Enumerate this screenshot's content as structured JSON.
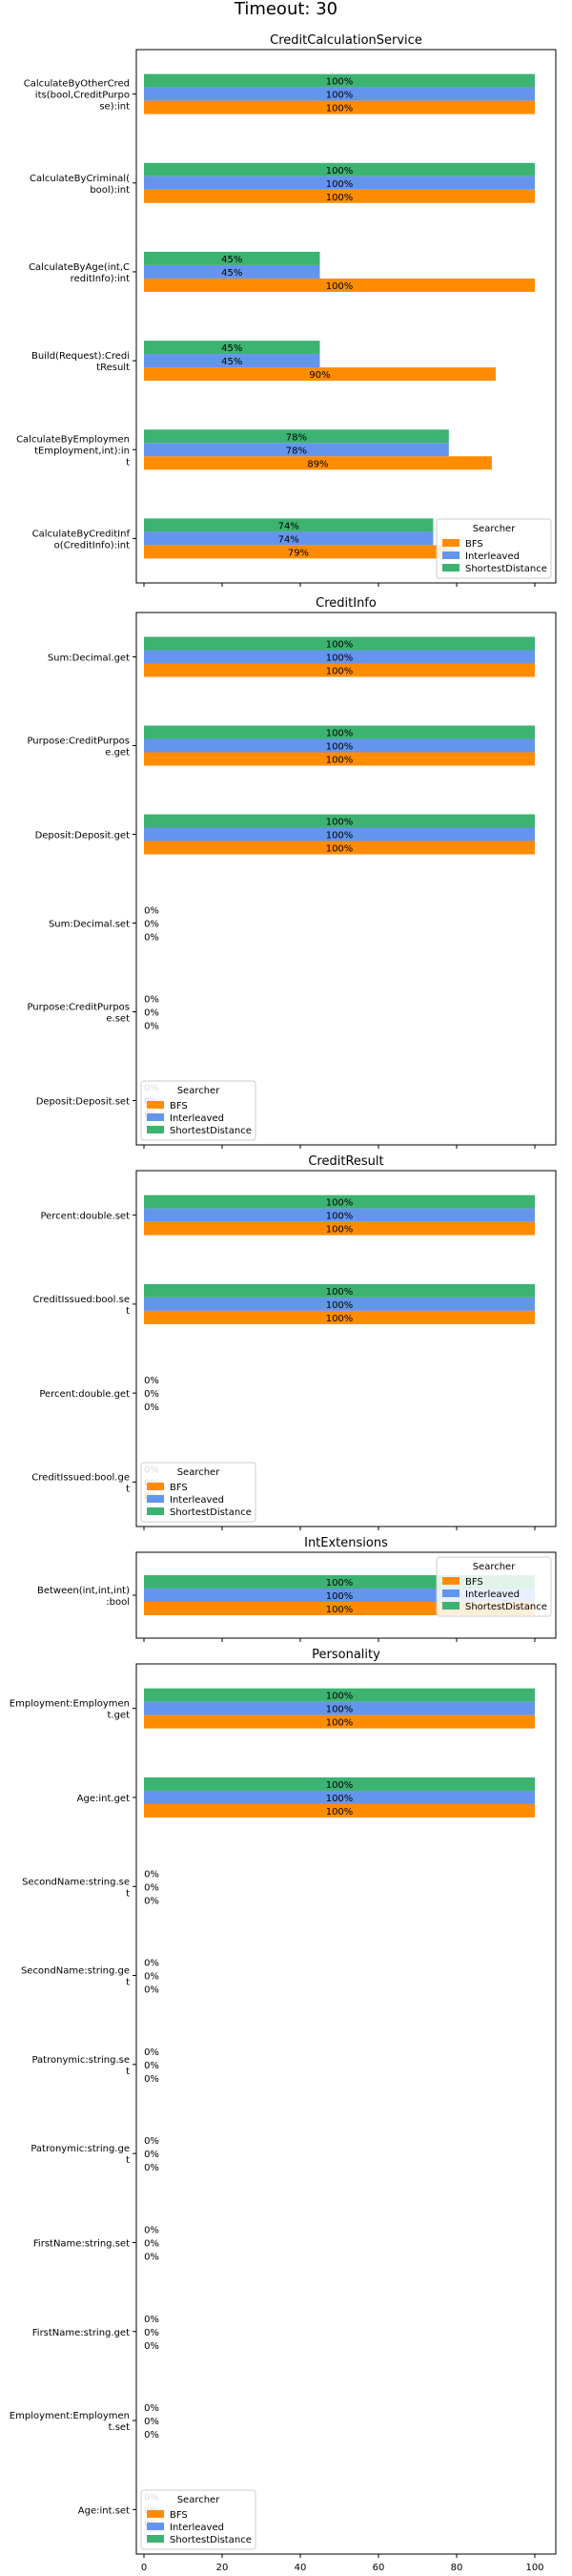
{
  "title": "Timeout: 30",
  "colors": {
    "BFS": "#ff8c00",
    "Interleaved": "#6495ed",
    "ShortestDistance": "#3cb371"
  },
  "chart_data": [
    {
      "type": "bar",
      "orientation": "horizontal",
      "title": "CreditCalculationService",
      "xlim": [
        0,
        100
      ],
      "legend": {
        "title": "Searcher",
        "placement": "bottom-right",
        "entries": [
          "BFS",
          "Interleaved",
          "ShortestDistance"
        ]
      },
      "categories": [
        "CalculateByOtherCred\nits(bool,CreditPurpo\nse):int",
        "CalculateByCriminal(\nbool):int",
        "CalculateByAge(int,C\nreditInfo):int",
        "Build(Request):Credi\ntResult",
        "CalculateByEmploymen\ntEmployment,int):in\nt",
        "CalculateByCreditInf\no(CreditInfo):int"
      ],
      "series": [
        {
          "name": "BFS",
          "values": [
            100,
            100,
            100,
            90,
            89,
            79
          ]
        },
        {
          "name": "Interleaved",
          "values": [
            100,
            100,
            45,
            45,
            78,
            74
          ]
        },
        {
          "name": "ShortestDistance",
          "values": [
            100,
            100,
            45,
            45,
            78,
            74
          ]
        }
      ]
    },
    {
      "type": "bar",
      "orientation": "horizontal",
      "title": "CreditInfo",
      "xlim": [
        0,
        100
      ],
      "legend": {
        "title": "Searcher",
        "placement": "bottom-left",
        "entries": [
          "BFS",
          "Interleaved",
          "ShortestDistance"
        ]
      },
      "categories": [
        "Sum:Decimal.get",
        "Purpose:CreditPurpos\ne.get",
        "Deposit:Deposit.get",
        "Sum:Decimal.set",
        "Purpose:CreditPurpos\ne.set",
        "Deposit:Deposit.set"
      ],
      "series": [
        {
          "name": "BFS",
          "values": [
            100,
            100,
            100,
            0,
            0,
            0
          ]
        },
        {
          "name": "Interleaved",
          "values": [
            100,
            100,
            100,
            0,
            0,
            0
          ]
        },
        {
          "name": "ShortestDistance",
          "values": [
            100,
            100,
            100,
            0,
            0,
            0
          ]
        }
      ]
    },
    {
      "type": "bar",
      "orientation": "horizontal",
      "title": "CreditResult",
      "xlim": [
        0,
        100
      ],
      "legend": {
        "title": "Searcher",
        "placement": "bottom-left",
        "entries": [
          "BFS",
          "Interleaved",
          "ShortestDistance"
        ]
      },
      "categories": [
        "Percent:double.set",
        "CreditIssued:bool.se\nt",
        "Percent:double.get",
        "CreditIssued:bool.ge\nt"
      ],
      "series": [
        {
          "name": "BFS",
          "values": [
            100,
            100,
            0,
            0
          ]
        },
        {
          "name": "Interleaved",
          "values": [
            100,
            100,
            0,
            0
          ]
        },
        {
          "name": "ShortestDistance",
          "values": [
            100,
            100,
            0,
            0
          ]
        }
      ]
    },
    {
      "type": "bar",
      "orientation": "horizontal",
      "title": "IntExtensions",
      "xlim": [
        0,
        100
      ],
      "legend": {
        "title": "Searcher",
        "placement": "top-right",
        "entries": [
          "BFS",
          "Interleaved",
          "ShortestDistance"
        ]
      },
      "categories": [
        "Between(int,int,int)\n:bool"
      ],
      "series": [
        {
          "name": "BFS",
          "values": [
            100
          ]
        },
        {
          "name": "Interleaved",
          "values": [
            100
          ]
        },
        {
          "name": "ShortestDistance",
          "values": [
            100
          ]
        }
      ]
    },
    {
      "type": "bar",
      "orientation": "horizontal",
      "title": "Personality",
      "xlim": [
        0,
        100
      ],
      "xticks": [
        "0",
        "20",
        "40",
        "60",
        "80",
        "100"
      ],
      "legend": {
        "title": "Searcher",
        "placement": "bottom-left",
        "entries": [
          "BFS",
          "Interleaved",
          "ShortestDistance"
        ]
      },
      "categories": [
        "Employment:Employmen\nt.get",
        "Age:int.get",
        "SecondName:string.se\nt",
        "SecondName:string.ge\nt",
        "Patronymic:string.se\nt",
        "Patronymic:string.ge\nt",
        "FirstName:string.set",
        "FirstName:string.get",
        "Employment:Employmen\nt.set",
        "Age:int.set"
      ],
      "series": [
        {
          "name": "BFS",
          "values": [
            100,
            100,
            0,
            0,
            0,
            0,
            0,
            0,
            0,
            0
          ]
        },
        {
          "name": "Interleaved",
          "values": [
            100,
            100,
            0,
            0,
            0,
            0,
            0,
            0,
            0,
            0
          ]
        },
        {
          "name": "ShortestDistance",
          "values": [
            100,
            100,
            0,
            0,
            0,
            0,
            0,
            0,
            0,
            0
          ]
        }
      ]
    }
  ]
}
